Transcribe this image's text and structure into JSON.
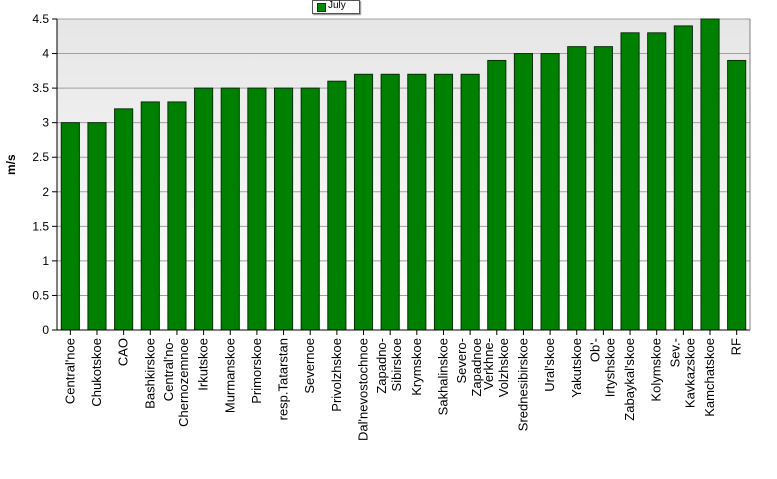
{
  "chart_data": {
    "type": "bar",
    "ylabel": "m/s",
    "xlabel": "",
    "ylim": [
      0,
      4.5
    ],
    "yticks": [
      "0",
      "0.5",
      "1",
      "1.5",
      "2",
      "2.5",
      "3",
      "3.5",
      "4",
      "4.5"
    ],
    "grid": true,
    "legend_position": "top-center",
    "categories": [
      "Central'noe",
      "Chukotskoe",
      "CAO",
      "Bashkirskoe",
      "Central'no-Chernozemnoe",
      "Irkutskoe",
      "Murmanskoe",
      "Primorskoe",
      "resp.Tatarstan",
      "Severnoe",
      "Privolzhskoe",
      "Dal'nevostochnoe",
      "Zapadno-Sibirskoe",
      "Krymskoe",
      "Sakhalinskoe",
      "Severo-Zapadnoe",
      "Verkhne-Volzhskoe",
      "Srednesibirskoe",
      "Ural'skoe",
      "Yakutskoe",
      "Ob'-Irtyshskoe",
      "Zabaykal'skoe",
      "Kolymskoe",
      "Sev.-Kavkazskoe",
      "Kamchatskoe",
      "RF"
    ],
    "series": [
      {
        "name": "July",
        "color": "#008000",
        "values": [
          3.0,
          3.0,
          3.2,
          3.3,
          3.3,
          3.5,
          3.5,
          3.5,
          3.5,
          3.5,
          3.6,
          3.7,
          3.7,
          3.7,
          3.7,
          3.7,
          3.9,
          4.0,
          4.0,
          4.1,
          4.1,
          4.3,
          4.3,
          4.4,
          4.5,
          3.9
        ]
      }
    ]
  }
}
